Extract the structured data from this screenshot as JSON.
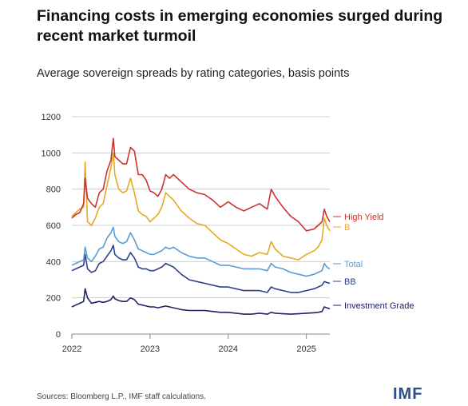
{
  "header": {
    "title": "Financing costs in emerging economies surged during recent market turmoil",
    "subtitle": "Average sovereign spreads by rating categories, basis points"
  },
  "footer": {
    "source": "Sources: Bloomberg L.P., IMF staff calculations.",
    "logo": "IMF"
  },
  "chart_data": {
    "type": "line",
    "title": "Financing costs in emerging economies surged during recent market turmoil",
    "subtitle": "Average sovereign spreads by rating categories, basis points",
    "xlabel": "",
    "ylabel": "",
    "xlim": [
      2022.0,
      2025.3
    ],
    "ylim": [
      0,
      1200
    ],
    "x_ticks": [
      "2022",
      "2023",
      "2024",
      "2025"
    ],
    "y_ticks": [
      "0",
      "200",
      "400",
      "600",
      "800",
      "1000",
      "1200"
    ],
    "grid": "horizontal",
    "legend": "right, labels at line ends",
    "series": [
      {
        "name": "High Yield",
        "color": "#c8342f",
        "x": [
          2022.0,
          2022.05,
          2022.1,
          2022.15,
          2022.17,
          2022.2,
          2022.25,
          2022.3,
          2022.35,
          2022.4,
          2022.45,
          2022.5,
          2022.53,
          2022.55,
          2022.6,
          2022.65,
          2022.7,
          2022.75,
          2022.8,
          2022.85,
          2022.9,
          2022.95,
          2023.0,
          2023.05,
          2023.1,
          2023.15,
          2023.2,
          2023.25,
          2023.3,
          2023.4,
          2023.5,
          2023.6,
          2023.7,
          2023.8,
          2023.9,
          2024.0,
          2024.1,
          2024.2,
          2024.3,
          2024.4,
          2024.5,
          2024.55,
          2024.6,
          2024.7,
          2024.8,
          2024.9,
          2025.0,
          2025.1,
          2025.15,
          2025.2,
          2025.23,
          2025.26,
          2025.3
        ],
        "values": [
          640,
          660,
          670,
          720,
          860,
          750,
          720,
          700,
          780,
          800,
          900,
          960,
          1080,
          980,
          960,
          940,
          940,
          1030,
          1010,
          880,
          880,
          850,
          790,
          780,
          760,
          800,
          880,
          860,
          880,
          840,
          800,
          780,
          770,
          740,
          700,
          730,
          700,
          680,
          700,
          720,
          690,
          800,
          760,
          700,
          650,
          620,
          570,
          580,
          600,
          620,
          690,
          650,
          620
        ]
      },
      {
        "name": "B",
        "color": "#e8a823",
        "x": [
          2022.0,
          2022.05,
          2022.1,
          2022.15,
          2022.17,
          2022.2,
          2022.25,
          2022.3,
          2022.35,
          2022.4,
          2022.45,
          2022.5,
          2022.53,
          2022.55,
          2022.6,
          2022.65,
          2022.7,
          2022.75,
          2022.8,
          2022.85,
          2022.9,
          2022.95,
          2023.0,
          2023.05,
          2023.1,
          2023.15,
          2023.2,
          2023.25,
          2023.3,
          2023.4,
          2023.5,
          2023.6,
          2023.7,
          2023.8,
          2023.9,
          2024.0,
          2024.1,
          2024.2,
          2024.3,
          2024.4,
          2024.5,
          2024.55,
          2024.6,
          2024.7,
          2024.8,
          2024.9,
          2025.0,
          2025.1,
          2025.15,
          2025.2,
          2025.23,
          2025.26,
          2025.3
        ],
        "values": [
          650,
          670,
          690,
          700,
          950,
          620,
          600,
          640,
          700,
          720,
          820,
          920,
          1000,
          880,
          800,
          780,
          790,
          860,
          780,
          680,
          660,
          650,
          620,
          640,
          660,
          700,
          780,
          760,
          740,
          680,
          640,
          610,
          600,
          560,
          520,
          500,
          470,
          440,
          430,
          450,
          440,
          510,
          470,
          430,
          420,
          410,
          440,
          460,
          480,
          520,
          640,
          600,
          570
        ]
      },
      {
        "name": "Total",
        "color": "#5b9bd5",
        "x": [
          2022.0,
          2022.05,
          2022.1,
          2022.15,
          2022.17,
          2022.2,
          2022.25,
          2022.3,
          2022.35,
          2022.4,
          2022.45,
          2022.5,
          2022.53,
          2022.55,
          2022.6,
          2022.65,
          2022.7,
          2022.75,
          2022.8,
          2022.85,
          2022.9,
          2022.95,
          2023.0,
          2023.05,
          2023.1,
          2023.15,
          2023.2,
          2023.25,
          2023.3,
          2023.4,
          2023.5,
          2023.6,
          2023.7,
          2023.8,
          2023.9,
          2024.0,
          2024.1,
          2024.2,
          2024.3,
          2024.4,
          2024.5,
          2024.55,
          2024.6,
          2024.7,
          2024.8,
          2024.9,
          2025.0,
          2025.1,
          2025.15,
          2025.2,
          2025.23,
          2025.26,
          2025.3
        ],
        "values": [
          380,
          390,
          400,
          410,
          480,
          420,
          400,
          430,
          470,
          480,
          530,
          560,
          590,
          540,
          510,
          500,
          510,
          560,
          520,
          470,
          460,
          450,
          440,
          440,
          450,
          460,
          480,
          470,
          480,
          450,
          430,
          420,
          420,
          400,
          380,
          380,
          370,
          360,
          360,
          360,
          350,
          390,
          370,
          360,
          340,
          330,
          320,
          330,
          340,
          350,
          390,
          370,
          360
        ]
      },
      {
        "name": "BB",
        "color": "#2e3f8f",
        "x": [
          2022.0,
          2022.05,
          2022.1,
          2022.15,
          2022.17,
          2022.2,
          2022.25,
          2022.3,
          2022.35,
          2022.4,
          2022.45,
          2022.5,
          2022.53,
          2022.55,
          2022.6,
          2022.65,
          2022.7,
          2022.75,
          2022.8,
          2022.85,
          2022.9,
          2022.95,
          2023.0,
          2023.05,
          2023.1,
          2023.15,
          2023.2,
          2023.25,
          2023.3,
          2023.4,
          2023.5,
          2023.6,
          2023.7,
          2023.8,
          2023.9,
          2024.0,
          2024.1,
          2024.2,
          2024.3,
          2024.4,
          2024.5,
          2024.55,
          2024.6,
          2024.7,
          2024.8,
          2024.9,
          2025.0,
          2025.1,
          2025.15,
          2025.2,
          2025.23,
          2025.26,
          2025.3
        ],
        "values": [
          350,
          360,
          370,
          380,
          440,
          360,
          340,
          350,
          390,
          400,
          430,
          460,
          490,
          440,
          420,
          410,
          410,
          450,
          420,
          370,
          360,
          360,
          350,
          350,
          360,
          370,
          390,
          380,
          370,
          330,
          300,
          290,
          280,
          270,
          260,
          260,
          250,
          240,
          240,
          240,
          230,
          260,
          250,
          240,
          230,
          230,
          240,
          250,
          260,
          270,
          290,
          285,
          280
        ]
      },
      {
        "name": "Investment Grade",
        "color": "#1c2366",
        "x": [
          2022.0,
          2022.05,
          2022.1,
          2022.15,
          2022.17,
          2022.2,
          2022.25,
          2022.3,
          2022.35,
          2022.4,
          2022.45,
          2022.5,
          2022.53,
          2022.55,
          2022.6,
          2022.65,
          2022.7,
          2022.75,
          2022.8,
          2022.85,
          2022.9,
          2022.95,
          2023.0,
          2023.05,
          2023.1,
          2023.15,
          2023.2,
          2023.25,
          2023.3,
          2023.4,
          2023.5,
          2023.6,
          2023.7,
          2023.8,
          2023.9,
          2024.0,
          2024.1,
          2024.2,
          2024.3,
          2024.4,
          2024.5,
          2024.55,
          2024.6,
          2024.7,
          2024.8,
          2024.9,
          2025.0,
          2025.1,
          2025.15,
          2025.2,
          2025.23,
          2025.26,
          2025.3
        ],
        "values": [
          150,
          160,
          170,
          180,
          250,
          200,
          170,
          175,
          180,
          175,
          180,
          190,
          210,
          195,
          185,
          180,
          180,
          200,
          190,
          165,
          160,
          155,
          150,
          150,
          145,
          150,
          155,
          150,
          145,
          135,
          130,
          130,
          130,
          125,
          120,
          120,
          115,
          110,
          110,
          115,
          110,
          120,
          115,
          112,
          110,
          112,
          115,
          118,
          120,
          125,
          150,
          145,
          140
        ]
      }
    ]
  }
}
